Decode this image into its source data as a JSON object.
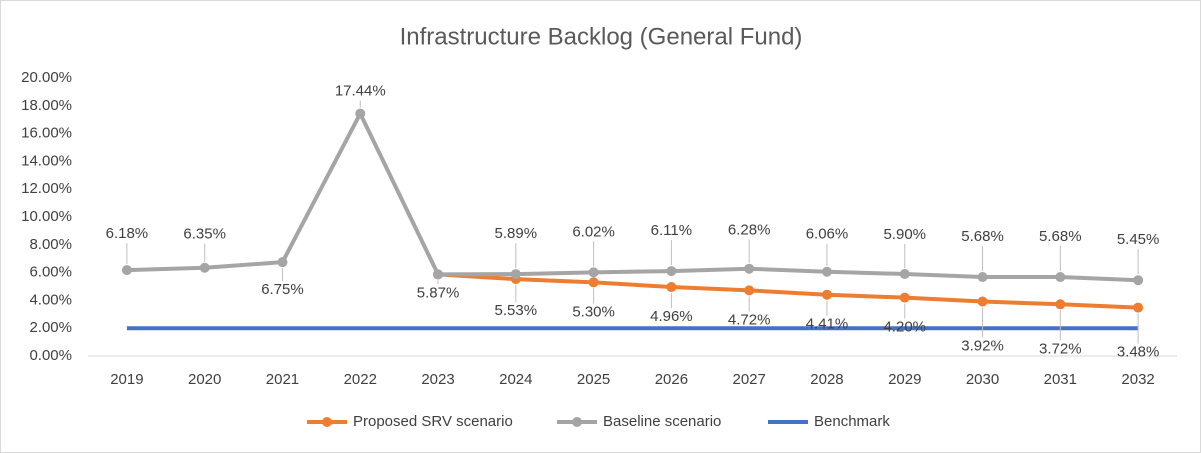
{
  "chart_data": {
    "type": "line",
    "title": "Infrastructure Backlog (General Fund)",
    "categories": [
      "2019",
      "2020",
      "2021",
      "2022",
      "2023",
      "2024",
      "2025",
      "2026",
      "2027",
      "2028",
      "2029",
      "2030",
      "2031",
      "2032"
    ],
    "series": [
      {
        "name": "Proposed SRV scenario",
        "color": "#ed7d31",
        "marker": true,
        "values": [
          null,
          null,
          null,
          null,
          5.87,
          5.53,
          5.3,
          4.96,
          4.72,
          4.41,
          4.2,
          3.92,
          3.72,
          3.48
        ],
        "value_labels": [
          null,
          null,
          null,
          null,
          null,
          "5.53%",
          "5.30%",
          "4.96%",
          "4.72%",
          "4.41%",
          "4.20%",
          "3.92%",
          "3.72%",
          "3.48%"
        ]
      },
      {
        "name": "Baseline scenario",
        "color": "#a5a5a5",
        "marker": true,
        "values": [
          6.18,
          6.35,
          6.75,
          17.44,
          5.87,
          5.89,
          6.02,
          6.11,
          6.28,
          6.06,
          5.9,
          5.68,
          5.68,
          5.45
        ],
        "value_labels": [
          "6.18%",
          "6.35%",
          "6.75%",
          "17.44%",
          "5.87%",
          "5.89%",
          "6.02%",
          "6.11%",
          "6.28%",
          "6.06%",
          "5.90%",
          "5.68%",
          "5.68%",
          "5.45%"
        ]
      },
      {
        "name": "Benchmark",
        "color": "#4472c4",
        "marker": false,
        "values": [
          2,
          2,
          2,
          2,
          2,
          2,
          2,
          2,
          2,
          2,
          2,
          2,
          2,
          2
        ]
      }
    ],
    "ylim": [
      0,
      20
    ],
    "yticks": [
      {
        "value": 0,
        "label": "0.00%"
      },
      {
        "value": 2,
        "label": "2.00%"
      },
      {
        "value": 4,
        "label": "4.00%"
      },
      {
        "value": 6,
        "label": "6.00%"
      },
      {
        "value": 8,
        "label": "8.00%"
      },
      {
        "value": 10,
        "label": "10.00%"
      },
      {
        "value": 12,
        "label": "12.00%"
      },
      {
        "value": 14,
        "label": "14.00%"
      },
      {
        "value": 16,
        "label": "16.00%"
      },
      {
        "value": 18,
        "label": "18.00%"
      },
      {
        "value": 20,
        "label": "20.00%"
      }
    ],
    "grid": false,
    "legend": "bottom"
  }
}
